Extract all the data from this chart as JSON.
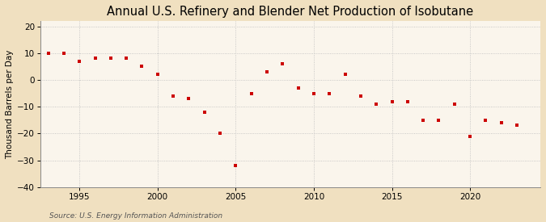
{
  "title": "Annual U.S. Refinery and Blender Net Production of Isobutane",
  "ylabel": "Thousand Barrels per Day",
  "source": "Source: U.S. Energy Information Administration",
  "background_color": "#f0e0c0",
  "plot_bg_color": "#faf5ec",
  "marker_color": "#cc0000",
  "years": [
    1993,
    1994,
    1995,
    1996,
    1997,
    1998,
    1999,
    2000,
    2001,
    2002,
    2003,
    2004,
    2005,
    2006,
    2007,
    2008,
    2009,
    2010,
    2011,
    2012,
    2013,
    2014,
    2015,
    2016,
    2017,
    2018,
    2019,
    2020,
    2021,
    2022,
    2023
  ],
  "values": [
    10,
    10,
    7,
    8,
    8,
    8,
    5,
    2,
    -6,
    -7,
    -12,
    -20,
    -32,
    -5,
    3,
    6,
    -3,
    -5,
    -5,
    2,
    -6,
    -9,
    -8,
    -8,
    -15,
    -15,
    -9,
    -21,
    -15,
    -16,
    -17
  ],
  "xlim": [
    1992.5,
    2024.5
  ],
  "ylim": [
    -40,
    22
  ],
  "yticks": [
    -40,
    -30,
    -20,
    -10,
    0,
    10,
    20
  ],
  "xticks": [
    1995,
    2000,
    2005,
    2010,
    2015,
    2020
  ],
  "grid_color": "#bbbbbb",
  "title_fontsize": 10.5,
  "label_fontsize": 7.5,
  "tick_fontsize": 7.5,
  "source_fontsize": 6.5
}
